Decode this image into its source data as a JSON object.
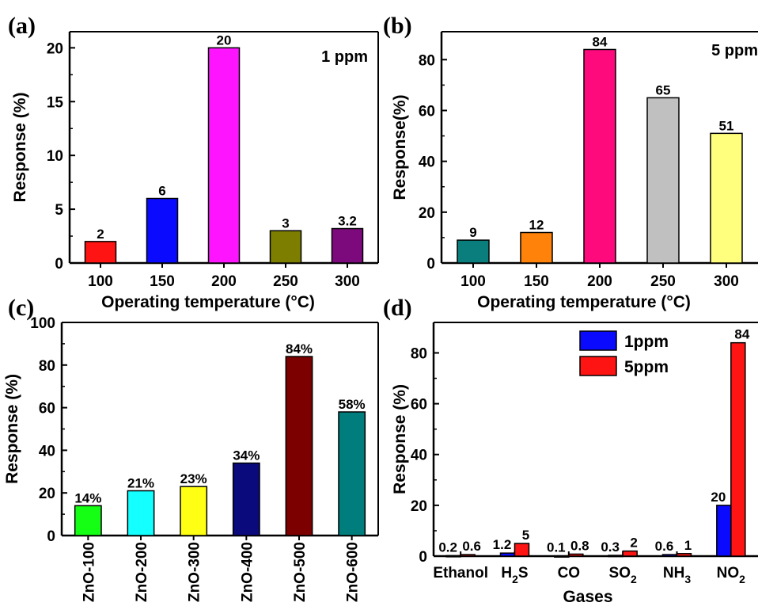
{
  "chart_data": [
    {
      "panel": "(a)",
      "type": "bar",
      "categories": [
        "100",
        "150",
        "200",
        "250",
        "300"
      ],
      "values": [
        2,
        6,
        20,
        3,
        3.2
      ],
      "data_labels": [
        "2",
        "6",
        "20",
        "3",
        "3.2"
      ],
      "colors": [
        "#ff1414",
        "#0a0aff",
        "#ff14ff",
        "#7d7d00",
        "#7d0a7d"
      ],
      "annotation": "1 ppm",
      "xlabel": "Operating temperature (°C)",
      "ylabel": "Response (%)",
      "ylim": [
        0,
        21.5
      ],
      "yticks": [
        0,
        5,
        10,
        15,
        20
      ],
      "grid": false
    },
    {
      "panel": "(b)",
      "type": "bar",
      "categories": [
        "100",
        "150",
        "200",
        "250",
        "300"
      ],
      "values": [
        9,
        12,
        84,
        65,
        51
      ],
      "data_labels": [
        "9",
        "12",
        "84",
        "65",
        "51"
      ],
      "colors": [
        "#0a7d7d",
        "#ff820a",
        "#ff0a7d",
        "#c0c0c0",
        "#ffff7d"
      ],
      "annotation": "5 ppm",
      "xlabel": "Operating temperature (°C)",
      "ylabel": "Response(%)",
      "ylim": [
        0,
        91
      ],
      "yticks": [
        0,
        20,
        40,
        60,
        80
      ],
      "grid": false
    },
    {
      "panel": "(c)",
      "type": "bar",
      "categories": [
        "ZnO-100",
        "ZnO-200",
        "ZnO-300",
        "ZnO-400",
        "ZnO-500",
        "ZnO-600"
      ],
      "values": [
        14,
        21,
        23,
        34,
        84,
        58
      ],
      "data_labels": [
        "14%",
        "21%",
        "23%",
        "34%",
        "84%",
        "58%"
      ],
      "colors": [
        "#14ff14",
        "#14ffff",
        "#ffff14",
        "#0a0a7d",
        "#7d0000",
        "#007d7d"
      ],
      "xlabel": "",
      "ylabel": "Response (%)",
      "ylim": [
        0,
        100
      ],
      "yticks": [
        0,
        20,
        40,
        60,
        80,
        100
      ],
      "grid": false
    },
    {
      "panel": "(d)",
      "type": "bar",
      "categories": [
        {
          "main": "Ethanol",
          "sub": ""
        },
        {
          "main": "H",
          "sub": "2",
          "post": "S"
        },
        {
          "main": "CO",
          "sub": ""
        },
        {
          "main": "SO",
          "sub": "2"
        },
        {
          "main": "NH",
          "sub": "3"
        },
        {
          "main": "NO",
          "sub": "2"
        }
      ],
      "series": [
        {
          "name": "1ppm",
          "color": "#0a0aff",
          "values": [
            0.2,
            1.2,
            0.1,
            0.3,
            0.6,
            20
          ],
          "data_labels": [
            "0.2",
            "1.2",
            "0.1",
            "0.3",
            "0.6",
            "20"
          ]
        },
        {
          "name": "5ppm",
          "color": "#ff1414",
          "values": [
            0.6,
            5,
            0.8,
            2,
            1,
            84
          ],
          "data_labels": [
            "0.6",
            "5",
            "0.8",
            "2",
            "1",
            "84"
          ]
        }
      ],
      "xlabel": "Gases",
      "ylabel": "Response (%)",
      "ylim": [
        0,
        92
      ],
      "yticks": [
        0,
        20,
        40,
        60,
        80
      ],
      "legend": "top-right",
      "grid": false
    }
  ]
}
